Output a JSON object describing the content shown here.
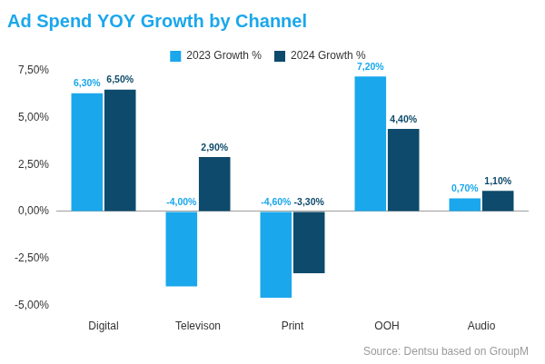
{
  "chart_data": {
    "type": "bar",
    "title": "Ad Spend YOY Growth by Channel",
    "source": "Source: Dentsu based on GroupM",
    "categories": [
      "Digital",
      "Televison",
      "Print",
      "OOH",
      "Audio"
    ],
    "series": [
      {
        "name": "2023 Growth %",
        "color": "#1aa7ec",
        "values": [
          6.3,
          -4.0,
          -4.6,
          7.2,
          0.7
        ],
        "value_labels": [
          "6,30%",
          "-4,00%",
          "-4,60%",
          "7,20%",
          "0,70%"
        ]
      },
      {
        "name": "2024 Growth %",
        "color": "#0d4a6b",
        "values": [
          6.5,
          2.9,
          -3.3,
          4.4,
          1.1
        ],
        "value_labels": [
          "6,50%",
          "2,90%",
          "-3,30%",
          "4,40%",
          "1,10%"
        ]
      }
    ],
    "ylim": [
      -5,
      7.5
    ],
    "yticks": [
      {
        "value": -5,
        "label": "-5,00%"
      },
      {
        "value": -2.5,
        "label": "-2,50%"
      },
      {
        "value": 0,
        "label": "0,00%"
      },
      {
        "value": 2.5,
        "label": "2,50%"
      },
      {
        "value": 5,
        "label": "5,00%"
      },
      {
        "value": 7.5,
        "label": "7,50%"
      }
    ],
    "grid": false,
    "legend": "top",
    "data_labels": true
  }
}
